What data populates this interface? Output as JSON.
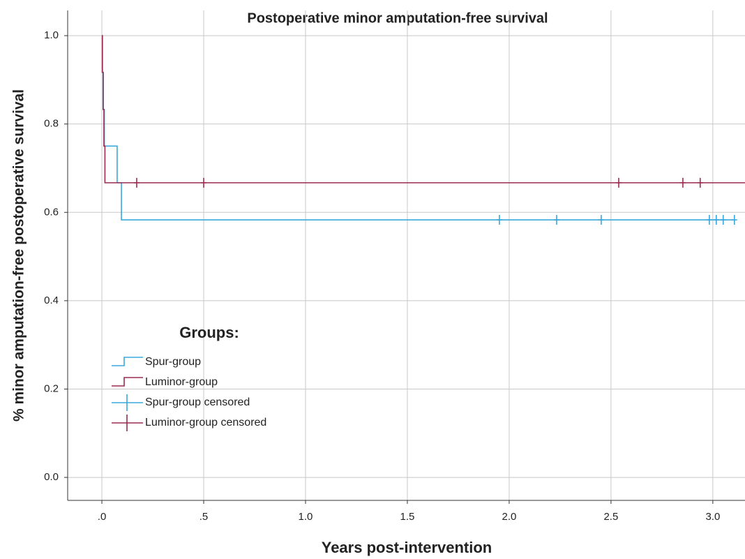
{
  "chart_data": {
    "type": "step",
    "title": "Postoperative minor amputation-free survival",
    "x_label": "Years post-intervention",
    "y_label": "% minor amputation-free postoperative survival",
    "xlim": [
      -0.168,
      3.158
    ],
    "ylim": [
      -0.052,
      1.057
    ],
    "xticks": [
      {
        "value": 0,
        "label": ".0"
      },
      {
        "value": 0.5,
        "label": ".5"
      },
      {
        "value": 1,
        "label": "1.0"
      },
      1.5,
      {
        "value": 2,
        "label": "2.0"
      },
      2.5,
      {
        "value": 3,
        "label": "3.0"
      }
    ],
    "yticks": [
      {
        "value": 0,
        "label": "0.0"
      },
      0.2,
      0.4,
      0.6,
      0.8,
      {
        "value": 1,
        "label": "1.0"
      }
    ],
    "grid": true,
    "legend_title": "Groups:",
    "legend_position": "lower left",
    "series": [
      {
        "name": "Spur-group",
        "color": "#3aa8dc",
        "marker": "step",
        "x": [
          0,
          0.003,
          0.007,
          0.012,
          0.075,
          0.096,
          3.1
        ],
        "values": [
          1,
          0.917,
          0.833,
          0.75,
          0.667,
          0.583,
          0.583
        ]
      },
      {
        "name": "Luminor-group",
        "color": "#9b2b52",
        "marker": "step",
        "x": [
          0,
          0.002,
          0.006,
          0.01,
          0.015,
          3.158
        ],
        "values": [
          1,
          0.917,
          0.833,
          0.75,
          0.667,
          0.667
        ]
      },
      {
        "name": "Spur-group censored",
        "color": "#3aa8dc",
        "marker": "plus",
        "x": [
          1.952,
          2.233,
          2.452,
          2.983,
          3.017,
          3.051,
          3.106
        ],
        "values": [
          0.583,
          0.583,
          0.583,
          0.583,
          0.583,
          0.583,
          0.583
        ]
      },
      {
        "name": "Luminor-group censored",
        "color": "#9b2b52",
        "marker": "plus",
        "x": [
          0.171,
          0.5,
          2.538,
          2.853,
          2.938
        ],
        "values": [
          0.667,
          0.667,
          0.667,
          0.667,
          0.667
        ]
      }
    ]
  }
}
